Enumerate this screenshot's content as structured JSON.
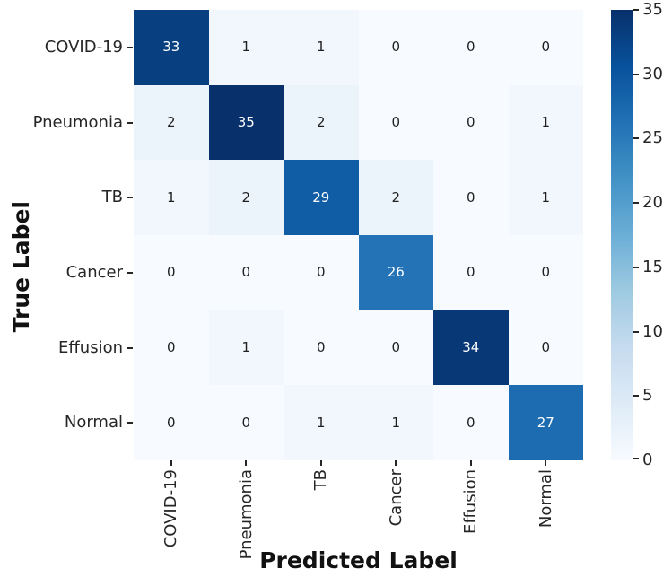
{
  "chart_data": {
    "type": "heatmap",
    "title": "",
    "xlabel": "Predicted Label",
    "ylabel": "True Label",
    "categories": [
      "COVID-19",
      "Pneumonia",
      "TB",
      "Cancer",
      "Effusion",
      "Normal"
    ],
    "matrix": [
      [
        33,
        1,
        1,
        0,
        0,
        0
      ],
      [
        2,
        35,
        2,
        0,
        0,
        1
      ],
      [
        1,
        2,
        29,
        2,
        0,
        1
      ],
      [
        0,
        0,
        0,
        26,
        0,
        0
      ],
      [
        0,
        1,
        0,
        0,
        34,
        0
      ],
      [
        0,
        0,
        1,
        1,
        0,
        27
      ]
    ],
    "vmin": 0,
    "vmax": 35,
    "colorbar_ticks": [
      0,
      5,
      10,
      15,
      20,
      25,
      30,
      35
    ],
    "colorbar_position": "right",
    "colormap": {
      "name": "Blues",
      "stops": [
        "#f7fbff",
        "#deebf7",
        "#c6dbef",
        "#9ecae1",
        "#6baed6",
        "#4292c6",
        "#2171b5",
        "#08519c",
        "#08306b"
      ]
    },
    "annotation_colors": {
      "light": "#ffffff",
      "dark": "#1f1f1f"
    },
    "grid": false
  }
}
